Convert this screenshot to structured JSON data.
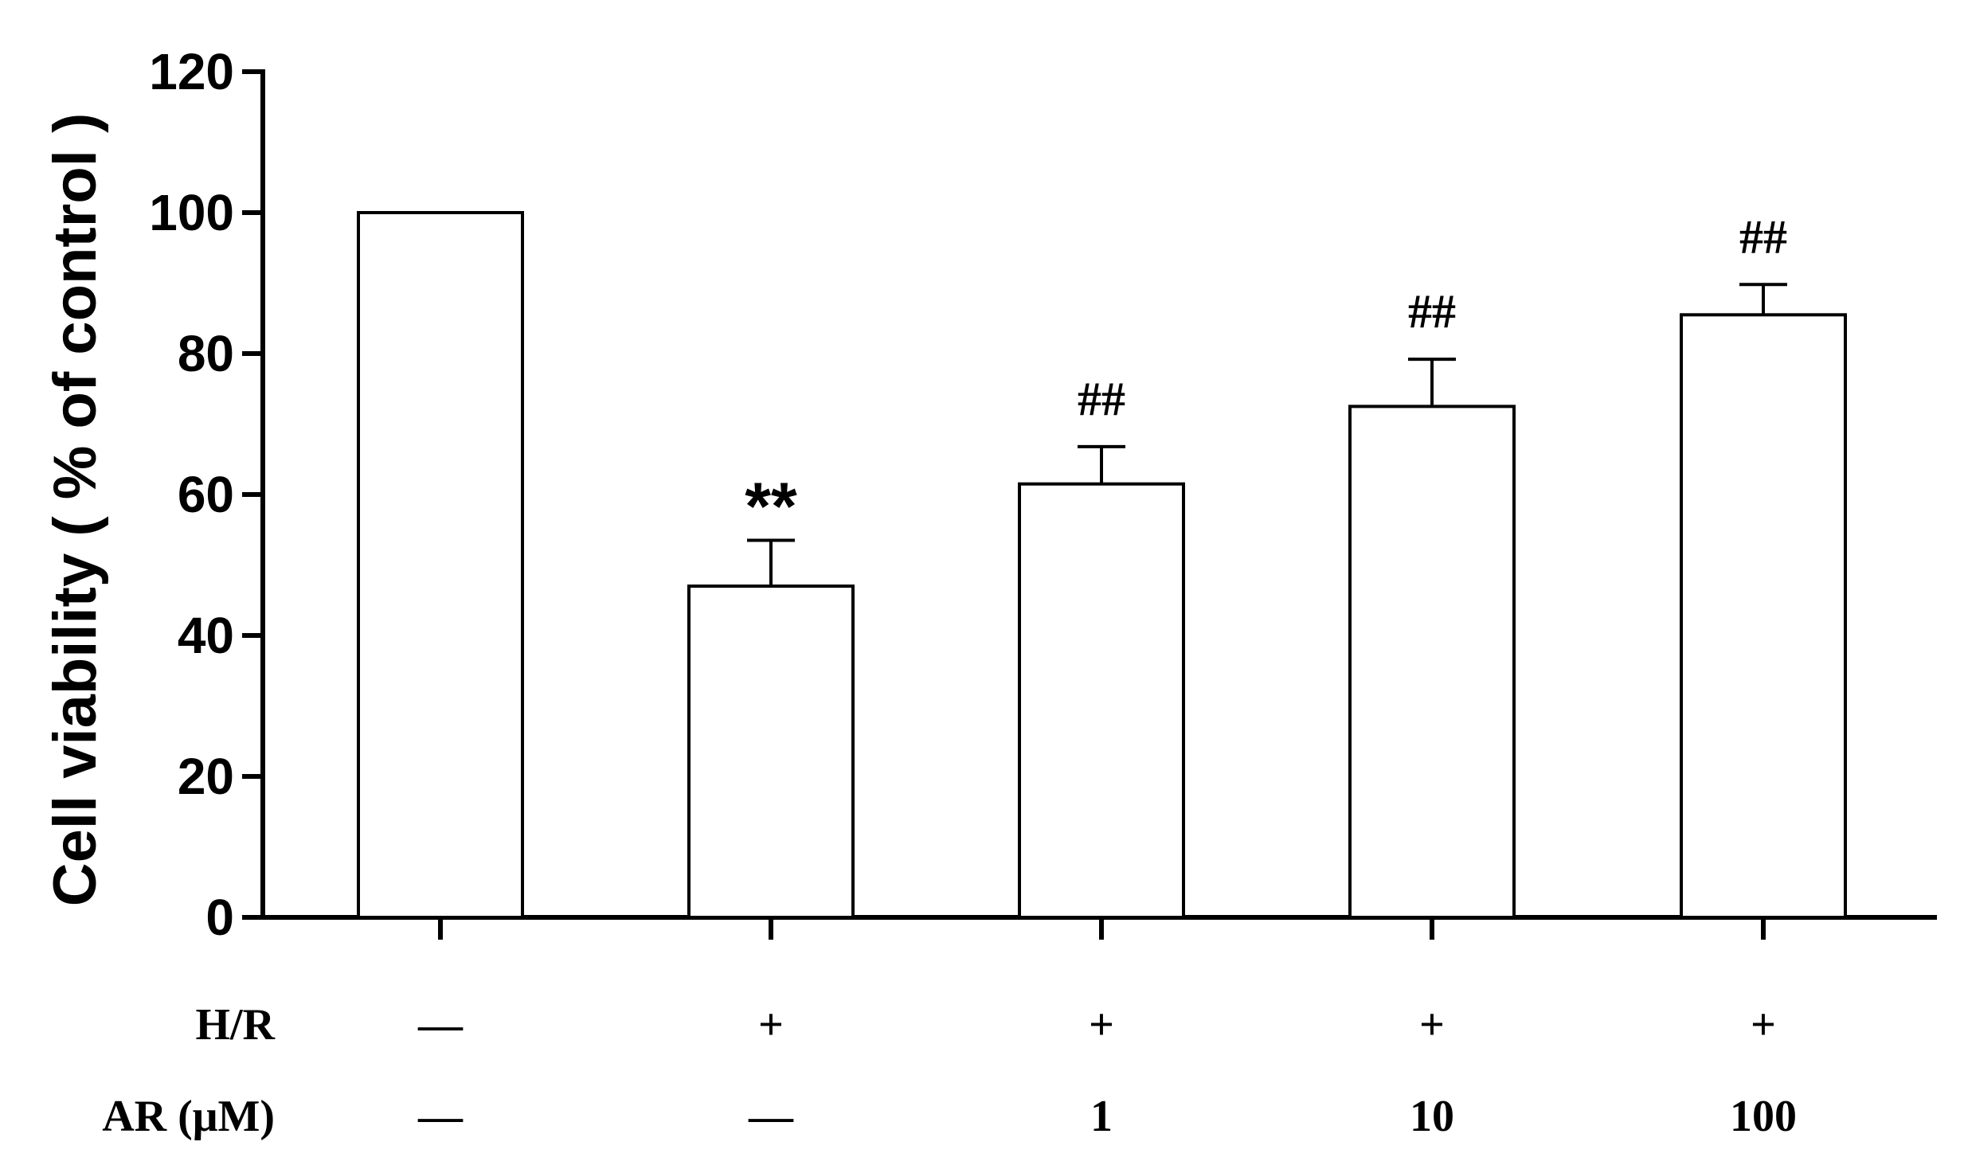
{
  "chart_data": {
    "type": "bar",
    "title": "",
    "ylabel": "Cell viability ( % of control )",
    "xlabel": "",
    "ylim": [
      0,
      120
    ],
    "yticks": [
      0,
      20,
      40,
      60,
      80,
      100,
      120
    ],
    "grid": false,
    "categories": [
      "—/—",
      "+/—",
      "+/1",
      "+/10",
      "+/100"
    ],
    "values": [
      100,
      47,
      61.5,
      72.5,
      85.5
    ],
    "errors": [
      0,
      6.5,
      5.3,
      6.7,
      4.3
    ],
    "significance": [
      "",
      "**",
      "##",
      "##",
      "##"
    ],
    "treatment_rows": [
      {
        "label": "H/R",
        "values": [
          "—",
          "+",
          "+",
          "+",
          "+"
        ]
      },
      {
        "label": "AR (μM)",
        "values": [
          "—",
          "—",
          "1",
          "10",
          "100"
        ]
      }
    ],
    "colors": {
      "bar_fill": "#ffffff",
      "bar_stroke": "#000000",
      "axis": "#000000"
    }
  }
}
